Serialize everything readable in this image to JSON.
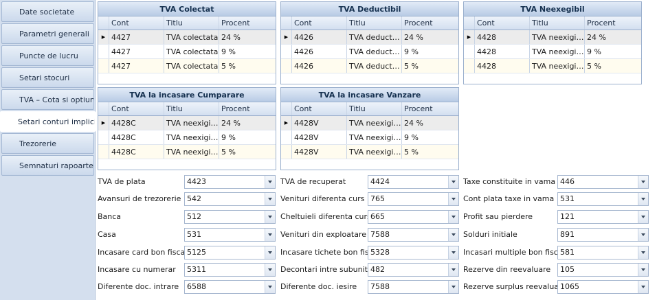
{
  "nav": [
    "Date societate",
    "Parametri generali",
    "Puncte de lucru",
    "Setari stocuri",
    "TVA – Cota si optiuni",
    "Setari conturi implicite",
    "Trezorerie",
    "Semnaturi rapoarte"
  ],
  "grid_headers": {
    "cont": "Cont",
    "titlu": "Titlu",
    "procent": "Procent"
  },
  "grids": [
    {
      "title": "TVA Colectat",
      "rows": [
        {
          "cont": "4427",
          "titlu": "TVA colectata",
          "procent": "24 %"
        },
        {
          "cont": "4427",
          "titlu": "TVA colectata",
          "procent": "9 %"
        },
        {
          "cont": "4427",
          "titlu": "TVA colectata",
          "procent": "5 %"
        }
      ]
    },
    {
      "title": "TVA Deductibil",
      "rows": [
        {
          "cont": "4426",
          "titlu": "TVA deductibila",
          "procent": "24 %"
        },
        {
          "cont": "4426",
          "titlu": "TVA deductibila",
          "procent": "9 %"
        },
        {
          "cont": "4426",
          "titlu": "TVA deductibila",
          "procent": "5 %"
        }
      ]
    },
    {
      "title": "TVA Neexegibil",
      "rows": [
        {
          "cont": "4428",
          "titlu": "TVA neexigibila",
          "procent": "24 %"
        },
        {
          "cont": "4428",
          "titlu": "TVA neexigibila",
          "procent": "9 %"
        },
        {
          "cont": "4428",
          "titlu": "TVA neexigibila",
          "procent": "5 %"
        }
      ]
    },
    {
      "title": "TVA la incasare Cumparare",
      "rows": [
        {
          "cont": "4428C",
          "titlu": "TVA neexigib...",
          "procent": "24 %"
        },
        {
          "cont": "4428C",
          "titlu": "TVA neexigib...",
          "procent": "9 %"
        },
        {
          "cont": "4428C",
          "titlu": "TVA neexigib...",
          "procent": "5 %"
        }
      ]
    },
    {
      "title": "TVA la incasare Vanzare",
      "rows": [
        {
          "cont": "4428V",
          "titlu": "TVA neexigib...",
          "procent": "24 %"
        },
        {
          "cont": "4428V",
          "titlu": "TVA neexigib...",
          "procent": "9 %"
        },
        {
          "cont": "4428V",
          "titlu": "TVA neexigib...",
          "procent": "5 %"
        }
      ]
    }
  ],
  "fields": [
    [
      {
        "label": "TVA de plata",
        "value": "4423"
      },
      {
        "label": "Avansuri de trezorerie",
        "value": "542"
      },
      {
        "label": "Banca",
        "value": "512"
      },
      {
        "label": "Casa",
        "value": "531"
      },
      {
        "label": "Incasare card bon fiscal",
        "value": "5125"
      },
      {
        "label": "Incasare cu numerar",
        "value": "5311"
      },
      {
        "label": "Diferente doc. intrare",
        "value": "6588"
      }
    ],
    [
      {
        "label": "TVA de recuperat",
        "value": "4424"
      },
      {
        "label": "Venituri diferenta curs",
        "value": "765"
      },
      {
        "label": "Cheltuieli diferenta curs",
        "value": "665"
      },
      {
        "label": "Venituri din exploatare",
        "value": "7588"
      },
      {
        "label": "Incasare tichete bon fiscal",
        "value": "5328"
      },
      {
        "label": "Decontari intre subunitati",
        "value": "482"
      },
      {
        "label": "Diferente doc. iesire",
        "value": "7588"
      }
    ],
    [
      {
        "label": "Taxe constituite in vama",
        "value": "446"
      },
      {
        "label": "Cont plata taxe in vama",
        "value": "531"
      },
      {
        "label": "Profit sau pierdere",
        "value": "121"
      },
      {
        "label": "Solduri initiale",
        "value": "891"
      },
      {
        "label": "Incasari multiple bon fiscal",
        "value": "581"
      },
      {
        "label": "Rezerve din reevaluare",
        "value": "105"
      },
      {
        "label": "Rezerve surplus reevaluare",
        "value": "1065"
      }
    ]
  ],
  "colors": {
    "nav_bg": "#d4dfee",
    "header_bg": "#b8cbe5",
    "alt_row": "#fffcef",
    "border": "#9aafcd"
  },
  "icons": {
    "row_indicator": "current-row-arrow-icon",
    "combo": "chevron-down-icon"
  }
}
